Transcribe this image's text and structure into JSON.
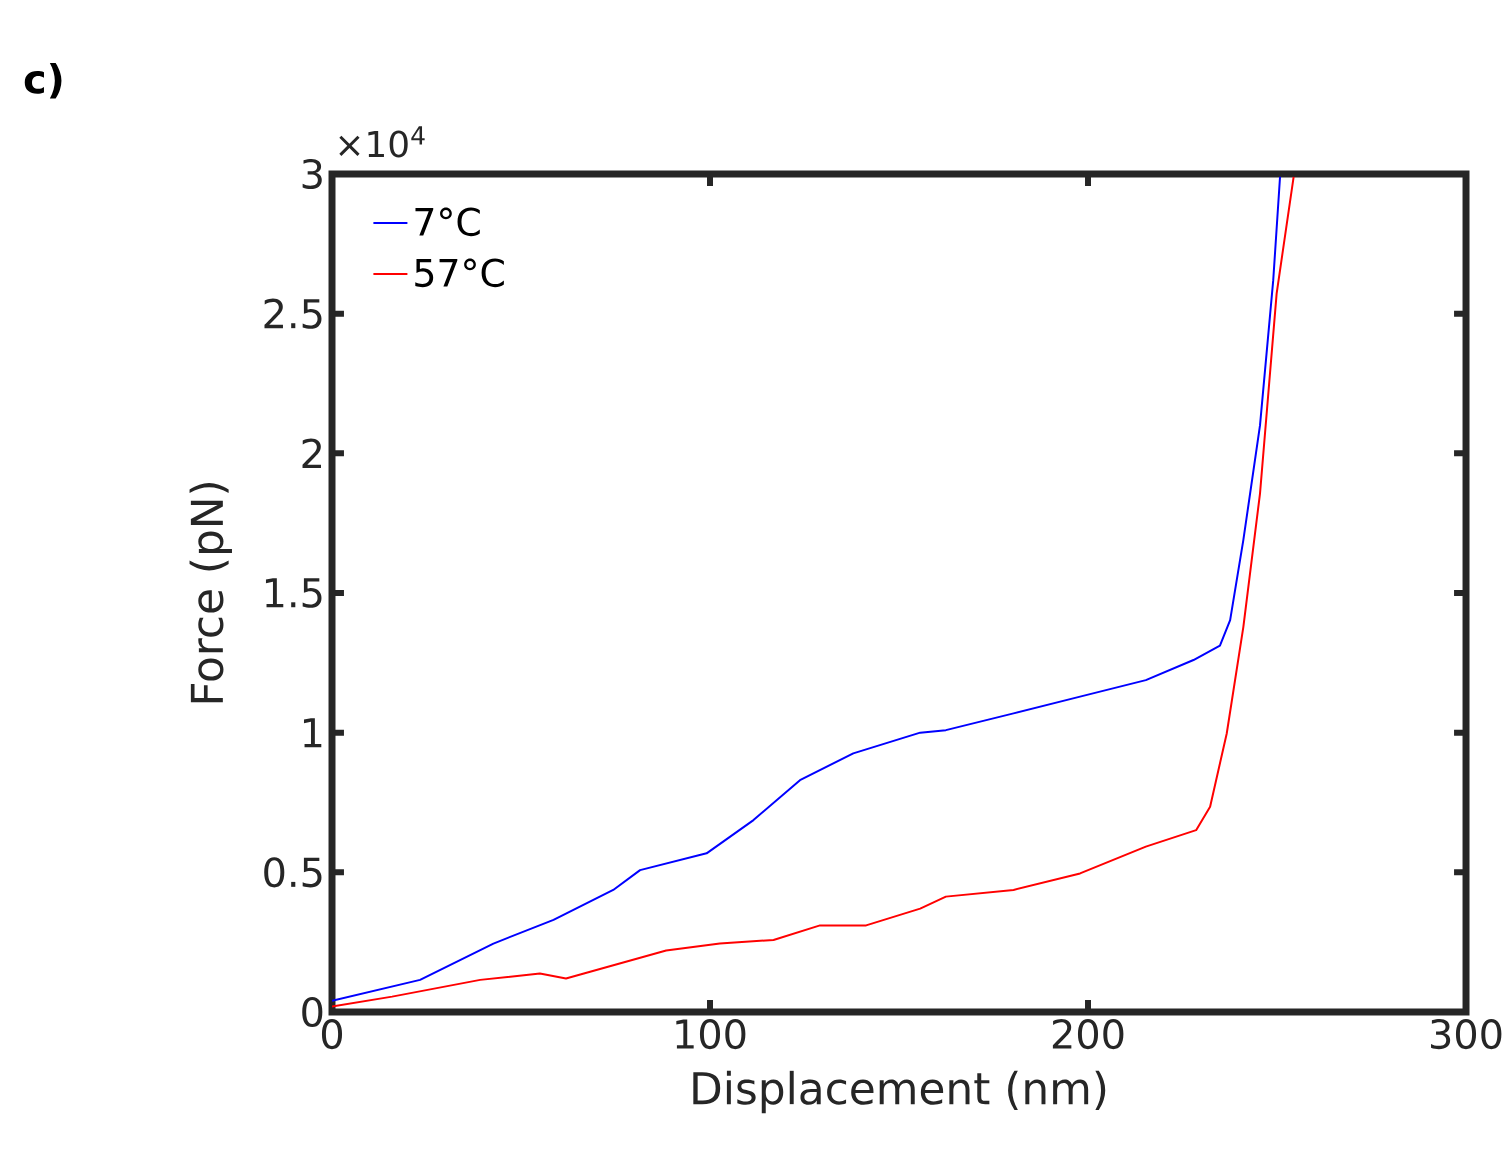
{
  "chart_data": {
    "type": "line",
    "xlabel": "Displacement (nm)",
    "ylabel": "Force (pN)",
    "annotations": [
      "c)",
      "×10$^{4}$"
    ],
    "xlim": [
      0,
      300
    ],
    "ylim": [
      0,
      3
    ],
    "xticks": [
      0,
      100,
      200,
      300
    ],
    "yticks": [
      0,
      0.5,
      1,
      1.5,
      2,
      2.5,
      3
    ],
    "legend": "top left",
    "grid": false,
    "marker": "none",
    "line_style": "solid",
    "series": [
      {
        "name": "7°C",
        "color": "#0000ff",
        "x": [
          0,
          23.3,
          42.7,
          58.6,
          74.4,
          81.5,
          99.1,
          111.5,
          123.8,
          137.9,
          155.6,
          162.4,
          180.3,
          197.9,
          215.3,
          227.9,
          234.9,
          237.6,
          241.1,
          245.5,
          249.0,
          250.8
        ],
        "values": [
          0.04,
          0.115,
          0.245,
          0.33,
          0.437,
          0.508,
          0.568,
          0.687,
          0.83,
          0.926,
          1.0,
          1.009,
          1.069,
          1.129,
          1.188,
          1.26,
          1.312,
          1.403,
          1.69,
          2.1,
          2.62,
          2.99
        ]
      },
      {
        "name": "57°C",
        "color": "#ff0000",
        "x": [
          0,
          15.9,
          39.2,
          55.0,
          61.9,
          88.4,
          102.6,
          116.8,
          129.1,
          141.3,
          155.6,
          162.4,
          180.3,
          197.9,
          215.3,
          228.6,
          232.3,
          236.7,
          241.1,
          245.5,
          249.9,
          254.4
        ],
        "values": [
          0.02,
          0.055,
          0.115,
          0.138,
          0.12,
          0.22,
          0.245,
          0.258,
          0.31,
          0.31,
          0.37,
          0.413,
          0.437,
          0.496,
          0.592,
          0.651,
          0.735,
          0.997,
          1.379,
          1.856,
          2.572,
          2.99
        ]
      }
    ]
  }
}
